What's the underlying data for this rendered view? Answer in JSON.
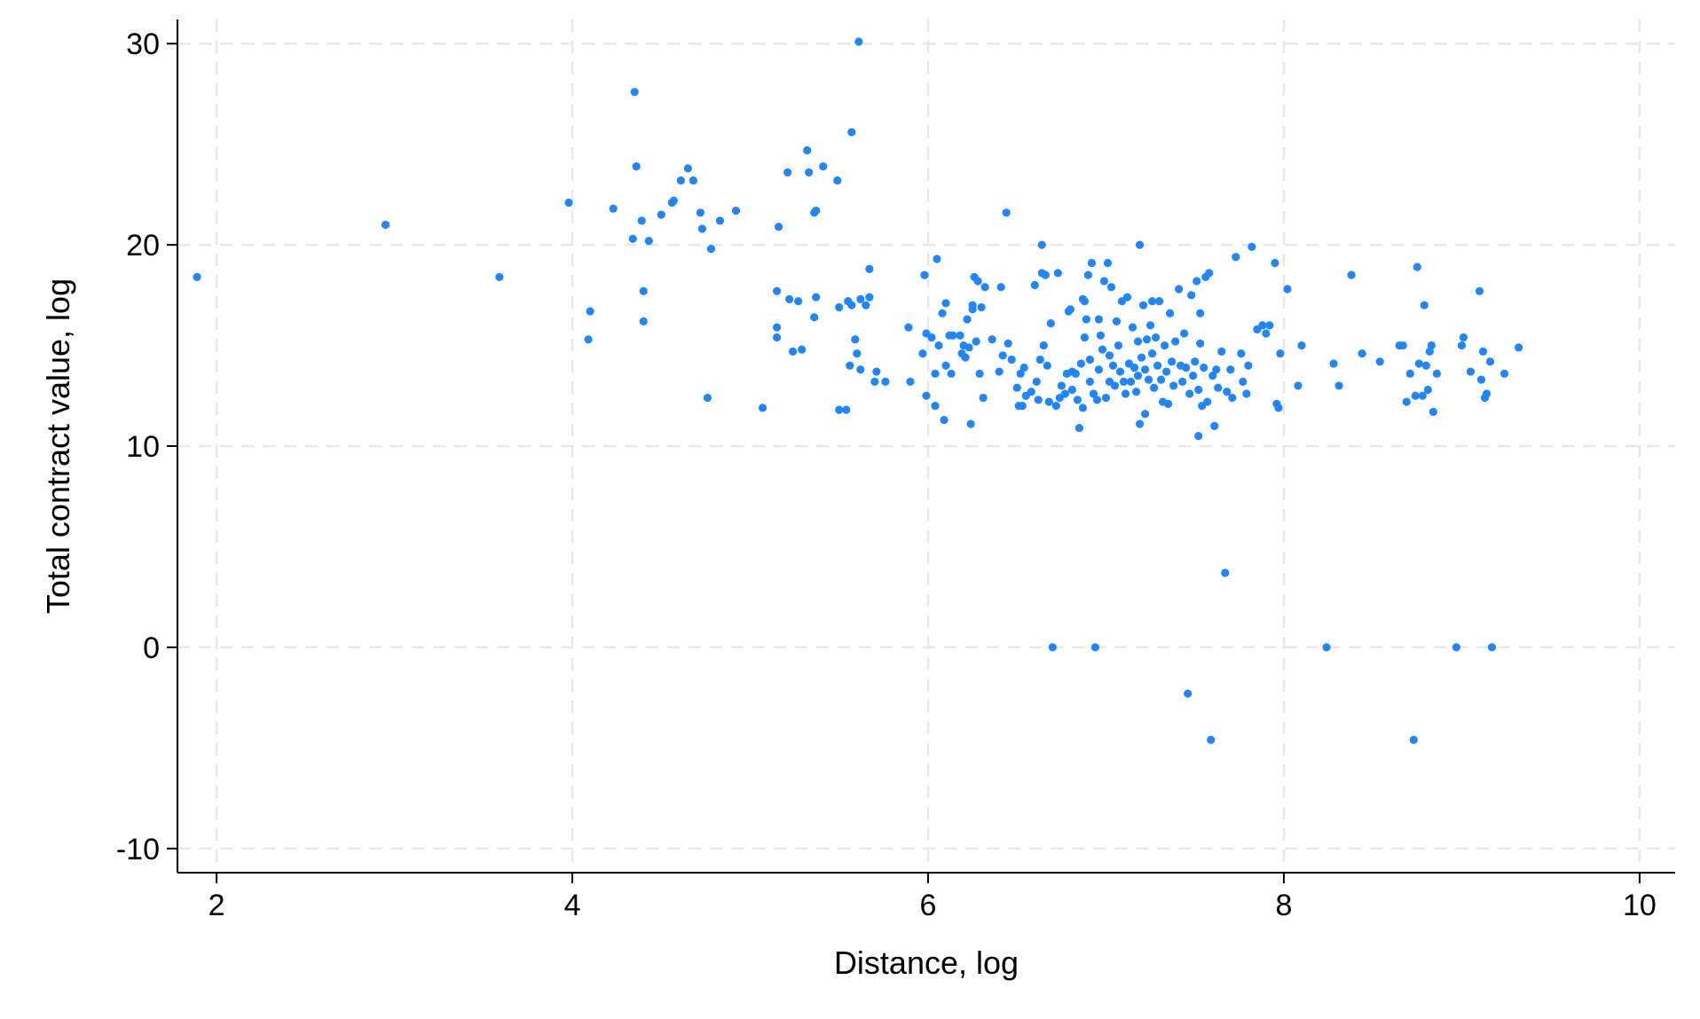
{
  "chart_data": {
    "type": "scatter",
    "title": "",
    "xlabel": "Distance, log",
    "ylabel": "Total contract value, log",
    "xlim": [
      1.78,
      10.2
    ],
    "ylim": [
      -11.2,
      31.2
    ],
    "x_ticks": [
      2,
      4,
      6,
      8,
      10
    ],
    "y_ticks": [
      -10,
      0,
      10,
      20,
      30
    ],
    "x_tick_labels": [
      "2",
      "4",
      "6",
      "8",
      "10"
    ],
    "y_tick_labels": [
      "-10",
      "0",
      "10",
      "20",
      "30"
    ],
    "grid": true,
    "legend": "none",
    "marker_color": "#1f86ff",
    "points": [
      [
        1.89,
        18.4
      ],
      [
        2.95,
        21.0
      ],
      [
        3.59,
        18.4
      ],
      [
        3.98,
        22.1
      ],
      [
        4.09,
        15.3
      ],
      [
        4.1,
        16.7
      ],
      [
        4.23,
        21.8
      ],
      [
        4.34,
        20.3
      ],
      [
        4.35,
        27.6
      ],
      [
        4.36,
        23.9
      ],
      [
        4.39,
        21.2
      ],
      [
        4.4,
        17.7
      ],
      [
        4.4,
        16.2
      ],
      [
        4.43,
        20.2
      ],
      [
        4.5,
        21.5
      ],
      [
        4.56,
        22.1
      ],
      [
        4.57,
        22.2
      ],
      [
        4.61,
        23.2
      ],
      [
        4.65,
        23.8
      ],
      [
        4.68,
        23.2
      ],
      [
        4.72,
        21.6
      ],
      [
        4.73,
        20.8
      ],
      [
        4.76,
        12.4
      ],
      [
        4.78,
        19.8
      ],
      [
        4.83,
        21.2
      ],
      [
        4.92,
        21.7
      ],
      [
        5.07,
        11.9
      ],
      [
        5.15,
        15.9
      ],
      [
        5.15,
        15.4
      ],
      [
        5.15,
        17.7
      ],
      [
        5.16,
        20.9
      ],
      [
        5.21,
        23.6
      ],
      [
        5.22,
        17.3
      ],
      [
        5.24,
        14.7
      ],
      [
        5.27,
        17.2
      ],
      [
        5.29,
        14.8
      ],
      [
        5.32,
        24.7
      ],
      [
        5.33,
        23.6
      ],
      [
        5.36,
        21.6
      ],
      [
        5.36,
        16.4
      ],
      [
        5.37,
        17.4
      ],
      [
        5.37,
        21.7
      ],
      [
        5.41,
        23.9
      ],
      [
        5.49,
        23.2
      ],
      [
        5.5,
        11.8
      ],
      [
        5.5,
        16.9
      ],
      [
        5.54,
        11.8
      ],
      [
        5.55,
        17.2
      ],
      [
        5.56,
        14.0
      ],
      [
        5.57,
        25.6
      ],
      [
        5.57,
        17.0
      ],
      [
        5.59,
        15.3
      ],
      [
        5.6,
        14.6
      ],
      [
        5.61,
        30.1
      ],
      [
        5.62,
        13.8
      ],
      [
        5.62,
        17.3
      ],
      [
        5.65,
        17.0
      ],
      [
        5.67,
        18.8
      ],
      [
        5.67,
        17.4
      ],
      [
        5.7,
        13.2
      ],
      [
        5.71,
        13.7
      ],
      [
        5.76,
        13.2
      ],
      [
        5.89,
        15.9
      ],
      [
        5.9,
        13.2
      ],
      [
        5.97,
        14.6
      ],
      [
        5.98,
        18.5
      ],
      [
        5.99,
        12.5
      ],
      [
        5.99,
        15.6
      ],
      [
        6.02,
        15.4
      ],
      [
        6.04,
        13.6
      ],
      [
        6.04,
        12.0
      ],
      [
        6.05,
        19.3
      ],
      [
        6.06,
        15.0
      ],
      [
        6.08,
        16.6
      ],
      [
        6.09,
        11.3
      ],
      [
        6.1,
        14.0
      ],
      [
        6.1,
        17.1
      ],
      [
        6.12,
        15.5
      ],
      [
        6.13,
        13.6
      ],
      [
        6.14,
        15.5
      ],
      [
        6.18,
        15.5
      ],
      [
        6.19,
        14.6
      ],
      [
        6.2,
        15.0
      ],
      [
        6.21,
        14.4
      ],
      [
        6.22,
        16.3
      ],
      [
        6.23,
        14.9
      ],
      [
        6.24,
        11.1
      ],
      [
        6.25,
        17.0
      ],
      [
        6.25,
        16.8
      ],
      [
        6.26,
        18.4
      ],
      [
        6.27,
        15.2
      ],
      [
        6.28,
        18.2
      ],
      [
        6.29,
        13.6
      ],
      [
        6.3,
        16.9
      ],
      [
        6.31,
        12.4
      ],
      [
        6.32,
        17.9
      ],
      [
        6.36,
        15.3
      ],
      [
        6.4,
        13.7
      ],
      [
        6.41,
        17.9
      ],
      [
        6.42,
        14.5
      ],
      [
        6.44,
        21.6
      ],
      [
        6.45,
        15.1
      ],
      [
        6.47,
        14.3
      ],
      [
        6.5,
        12.9
      ],
      [
        6.51,
        12.0
      ],
      [
        6.52,
        13.6
      ],
      [
        6.53,
        12.0
      ],
      [
        6.54,
        13.9
      ],
      [
        6.55,
        12.5
      ],
      [
        6.58,
        12.7
      ],
      [
        6.6,
        18.0
      ],
      [
        6.61,
        13.2
      ],
      [
        6.62,
        12.3
      ],
      [
        6.63,
        14.3
      ],
      [
        6.64,
        20.0
      ],
      [
        6.64,
        18.6
      ],
      [
        6.65,
        15.0
      ],
      [
        6.66,
        18.5
      ],
      [
        6.67,
        14.0
      ],
      [
        6.68,
        12.2
      ],
      [
        6.69,
        16.1
      ],
      [
        6.7,
        0.0
      ],
      [
        6.72,
        12.0
      ],
      [
        6.73,
        18.6
      ],
      [
        6.74,
        12.4
      ],
      [
        6.75,
        13.0
      ],
      [
        6.77,
        12.6
      ],
      [
        6.78,
        13.6
      ],
      [
        6.79,
        16.7
      ],
      [
        6.8,
        16.8
      ],
      [
        6.81,
        12.8
      ],
      [
        6.81,
        13.7
      ],
      [
        6.83,
        13.6
      ],
      [
        6.84,
        12.3
      ],
      [
        6.85,
        10.9
      ],
      [
        6.86,
        14.1
      ],
      [
        6.87,
        17.3
      ],
      [
        6.87,
        11.9
      ],
      [
        6.88,
        15.4
      ],
      [
        6.88,
        17.2
      ],
      [
        6.89,
        16.3
      ],
      [
        6.9,
        18.5
      ],
      [
        6.91,
        13.2
      ],
      [
        6.91,
        14.3
      ],
      [
        6.92,
        19.1
      ],
      [
        6.93,
        12.6
      ],
      [
        6.94,
        0.0
      ],
      [
        6.95,
        12.3
      ],
      [
        6.96,
        13.8
      ],
      [
        6.96,
        16.3
      ],
      [
        6.97,
        15.5
      ],
      [
        6.98,
        14.8
      ],
      [
        6.99,
        18.2
      ],
      [
        7.0,
        12.4
      ],
      [
        7.01,
        19.1
      ],
      [
        7.02,
        14.5
      ],
      [
        7.02,
        13.2
      ],
      [
        7.03,
        17.9
      ],
      [
        7.04,
        14.0
      ],
      [
        7.05,
        13.0
      ],
      [
        7.06,
        16.2
      ],
      [
        7.07,
        15.0
      ],
      [
        7.08,
        13.7
      ],
      [
        7.09,
        17.2
      ],
      [
        7.1,
        13.2
      ],
      [
        7.11,
        12.6
      ],
      [
        7.12,
        17.4
      ],
      [
        7.13,
        14.1
      ],
      [
        7.14,
        13.2
      ],
      [
        7.15,
        15.9
      ],
      [
        7.16,
        13.9
      ],
      [
        7.17,
        12.7
      ],
      [
        7.18,
        15.2
      ],
      [
        7.18,
        13.5
      ],
      [
        7.19,
        20.0
      ],
      [
        7.19,
        11.1
      ],
      [
        7.2,
        14.4
      ],
      [
        7.21,
        17.0
      ],
      [
        7.22,
        13.8
      ],
      [
        7.22,
        11.6
      ],
      [
        7.23,
        15.3
      ],
      [
        7.24,
        13.3
      ],
      [
        7.25,
        16.0
      ],
      [
        7.26,
        17.2
      ],
      [
        7.26,
        14.6
      ],
      [
        7.27,
        12.9
      ],
      [
        7.28,
        15.4
      ],
      [
        7.29,
        14.0
      ],
      [
        7.3,
        17.2
      ],
      [
        7.31,
        13.3
      ],
      [
        7.32,
        12.2
      ],
      [
        7.33,
        15.0
      ],
      [
        7.34,
        13.7
      ],
      [
        7.35,
        12.1
      ],
      [
        7.36,
        16.6
      ],
      [
        7.37,
        14.2
      ],
      [
        7.38,
        13.0
      ],
      [
        7.39,
        15.2
      ],
      [
        7.41,
        17.8
      ],
      [
        7.42,
        14.0
      ],
      [
        7.43,
        13.2
      ],
      [
        7.44,
        15.6
      ],
      [
        7.45,
        13.9
      ],
      [
        7.46,
        -2.3
      ],
      [
        7.47,
        12.6
      ],
      [
        7.48,
        17.5
      ],
      [
        7.49,
        13.5
      ],
      [
        7.5,
        14.2
      ],
      [
        7.51,
        18.2
      ],
      [
        7.52,
        12.8
      ],
      [
        7.52,
        10.5
      ],
      [
        7.53,
        16.6
      ],
      [
        7.53,
        15.1
      ],
      [
        7.54,
        12.0
      ],
      [
        7.55,
        13.9
      ],
      [
        7.56,
        18.4
      ],
      [
        7.57,
        12.2
      ],
      [
        7.58,
        18.6
      ],
      [
        7.59,
        -4.6
      ],
      [
        7.6,
        13.5
      ],
      [
        7.61,
        11.0
      ],
      [
        7.62,
        13.8
      ],
      [
        7.63,
        12.9
      ],
      [
        7.65,
        14.7
      ],
      [
        7.67,
        3.7
      ],
      [
        7.68,
        12.7
      ],
      [
        7.7,
        13.8
      ],
      [
        7.71,
        12.4
      ],
      [
        7.73,
        19.4
      ],
      [
        7.76,
        14.6
      ],
      [
        7.77,
        13.2
      ],
      [
        7.79,
        12.6
      ],
      [
        7.8,
        14.0
      ],
      [
        7.82,
        19.9
      ],
      [
        7.85,
        15.8
      ],
      [
        7.88,
        16.0
      ],
      [
        7.9,
        15.6
      ],
      [
        7.92,
        16.0
      ],
      [
        7.95,
        19.1
      ],
      [
        7.96,
        12.1
      ],
      [
        7.97,
        11.9
      ],
      [
        7.98,
        14.6
      ],
      [
        8.02,
        17.8
      ],
      [
        8.08,
        13.0
      ],
      [
        8.1,
        15.0
      ],
      [
        8.24,
        0.0
      ],
      [
        8.28,
        14.1
      ],
      [
        8.31,
        13.0
      ],
      [
        8.38,
        18.5
      ],
      [
        8.44,
        14.6
      ],
      [
        8.54,
        14.2
      ],
      [
        8.65,
        15.0
      ],
      [
        8.67,
        15.0
      ],
      [
        8.69,
        12.2
      ],
      [
        8.71,
        13.6
      ],
      [
        8.73,
        -4.6
      ],
      [
        8.74,
        12.5
      ],
      [
        8.75,
        18.9
      ],
      [
        8.76,
        14.1
      ],
      [
        8.78,
        12.5
      ],
      [
        8.79,
        17.0
      ],
      [
        8.8,
        14.0
      ],
      [
        8.81,
        12.8
      ],
      [
        8.82,
        14.7
      ],
      [
        8.83,
        15.0
      ],
      [
        8.84,
        11.7
      ],
      [
        8.86,
        13.6
      ],
      [
        8.97,
        0.0
      ],
      [
        9.0,
        15.0
      ],
      [
        9.01,
        15.4
      ],
      [
        9.05,
        13.7
      ],
      [
        9.1,
        17.7
      ],
      [
        9.11,
        13.3
      ],
      [
        9.12,
        14.7
      ],
      [
        9.13,
        12.4
      ],
      [
        9.14,
        12.6
      ],
      [
        9.16,
        14.2
      ],
      [
        9.17,
        0.0
      ],
      [
        9.24,
        13.6
      ],
      [
        9.32,
        14.9
      ]
    ]
  }
}
